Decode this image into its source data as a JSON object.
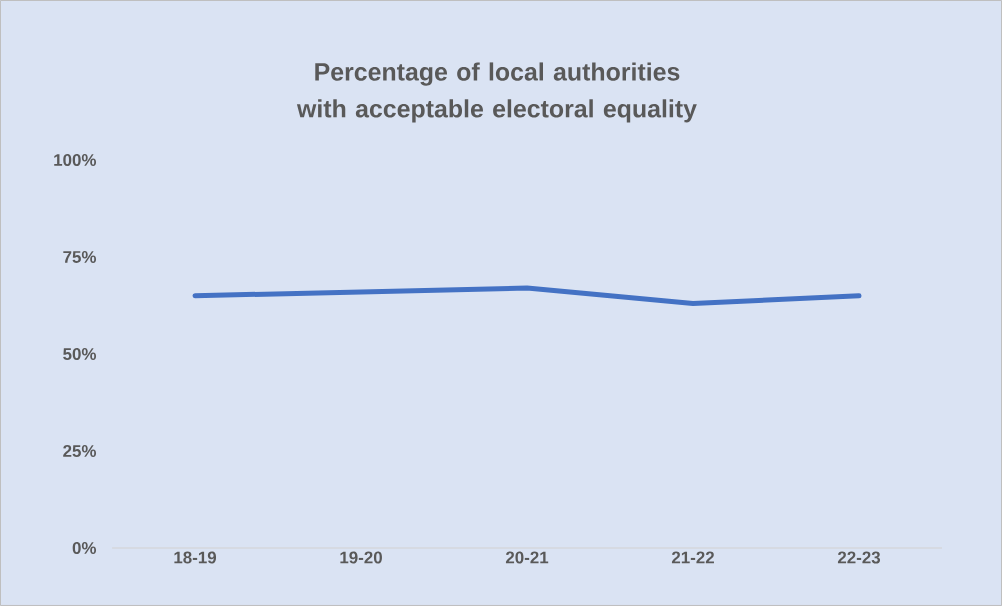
{
  "chart_data": {
    "type": "line",
    "title": "Percentage of local authorities with acceptable electoral equality",
    "categories": [
      "18-19",
      "19-20",
      "20-21",
      "21-22",
      "22-23"
    ],
    "series": [
      {
        "color": "#4472c4",
        "values": [
          65,
          66,
          67,
          63,
          65
        ]
      }
    ],
    "ylim": [
      0,
      100
    ],
    "yticks": [
      {
        "value": 0,
        "label": "0%"
      },
      {
        "value": 25,
        "label": "25%"
      },
      {
        "value": 50,
        "label": "50%"
      },
      {
        "value": 75,
        "label": "75%"
      },
      {
        "value": 100,
        "label": "100%"
      }
    ],
    "grid": false,
    "legend": false,
    "marker": "none",
    "line_style": "solid"
  }
}
